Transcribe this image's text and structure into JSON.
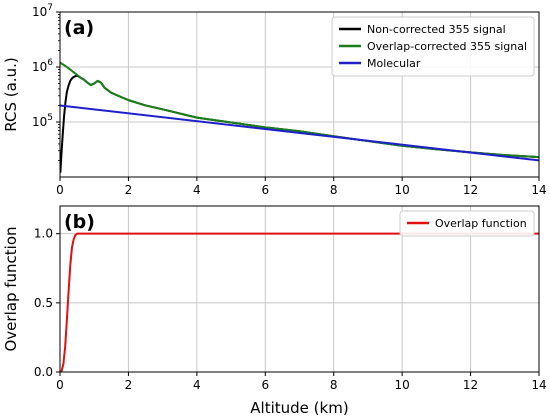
{
  "chart_data": [
    {
      "panel": "(a)",
      "type": "line",
      "ylabel": "RCS (a.u.)",
      "yscale": "log",
      "xlim": [
        0,
        14
      ],
      "ylim": [
        10000,
        10000000
      ],
      "xticks": [
        0,
        2,
        4,
        6,
        8,
        10,
        12,
        14
      ],
      "xtick_labels": [
        "0",
        "2",
        "4",
        "6",
        "8",
        "10",
        "12",
        "14"
      ],
      "yticks": [
        100000,
        1000000,
        10000000
      ],
      "ytick_labels": [
        {
          "base": "10",
          "exp": "5"
        },
        {
          "base": "10",
          "exp": "6"
        },
        {
          "base": "10",
          "exp": "7"
        }
      ],
      "grid": true,
      "legend": "top-right",
      "series": [
        {
          "name": "Non-corrected 355 signal",
          "color": "#000000",
          "x": [
            0.01,
            0.04,
            0.08,
            0.12,
            0.16,
            0.2,
            0.25,
            0.3,
            0.35,
            0.4,
            0.45,
            0.5,
            0.6,
            0.7,
            0.8,
            0.9,
            1.0,
            1.1,
            1.2,
            1.3,
            1.5,
            1.7,
            2.0,
            2.5,
            3.0,
            4.0,
            5.0,
            6.0,
            7.0,
            8.0,
            9.0,
            10.0,
            11.0,
            12.0,
            13.0,
            14.0
          ],
          "y": [
            12000,
            25000,
            60000,
            130000,
            230000,
            350000,
            460000,
            560000,
            620000,
            660000,
            680000,
            700000,
            640000,
            590000,
            520000,
            470000,
            500000,
            560000,
            520000,
            420000,
            340000,
            300000,
            250000,
            200000,
            170000,
            120000,
            98000,
            80000,
            68000,
            55000,
            45000,
            37000,
            32000,
            28000,
            25000,
            23000
          ]
        },
        {
          "name": "Overlap-corrected 355 signal",
          "color": "#1a7f1a",
          "x": [
            0.0,
            0.1,
            0.2,
            0.3,
            0.4,
            0.5,
            0.6,
            0.7,
            0.8,
            0.9,
            1.0,
            1.1,
            1.2,
            1.3,
            1.5,
            1.7,
            2.0,
            2.5,
            3.0,
            4.0,
            5.0,
            6.0,
            7.0,
            8.0,
            9.0,
            10.0,
            11.0,
            12.0,
            13.0,
            14.0
          ],
          "y": [
            1200000,
            1100000,
            1000000,
            900000,
            800000,
            720000,
            640000,
            590000,
            520000,
            470000,
            500000,
            560000,
            520000,
            420000,
            340000,
            300000,
            250000,
            200000,
            170000,
            120000,
            98000,
            80000,
            68000,
            55000,
            45000,
            37000,
            32000,
            28000,
            25000,
            23000
          ]
        },
        {
          "name": "Molecular",
          "color": "#1f1fcc",
          "x": [
            0,
            14
          ],
          "y": [
            200000,
            20000
          ]
        }
      ]
    },
    {
      "panel": "(b)",
      "type": "line",
      "xlabel": "Altitude (km)",
      "ylabel": "Overlap function",
      "xlim": [
        0,
        14
      ],
      "ylim": [
        0,
        1.2
      ],
      "xticks": [
        0,
        2,
        4,
        6,
        8,
        10,
        12,
        14
      ],
      "xtick_labels": [
        "0",
        "2",
        "4",
        "6",
        "8",
        "10",
        "12",
        "14"
      ],
      "yticks": [
        0,
        0.5,
        1.0
      ],
      "ytick_labels": [
        "0.0",
        "0.5",
        "1.0"
      ],
      "grid": true,
      "legend": "top-right",
      "series": [
        {
          "name": "Overlap function",
          "color": "#e01010",
          "x": [
            0.0,
            0.05,
            0.1,
            0.15,
            0.2,
            0.25,
            0.3,
            0.35,
            0.4,
            0.45,
            0.5,
            0.55,
            0.6,
            0.7,
            1.0,
            14.0
          ],
          "y": [
            0.0,
            0.01,
            0.06,
            0.18,
            0.37,
            0.58,
            0.77,
            0.9,
            0.96,
            0.99,
            1.0,
            1.0,
            1.0,
            1.0,
            1.0,
            1.0
          ]
        }
      ]
    }
  ]
}
